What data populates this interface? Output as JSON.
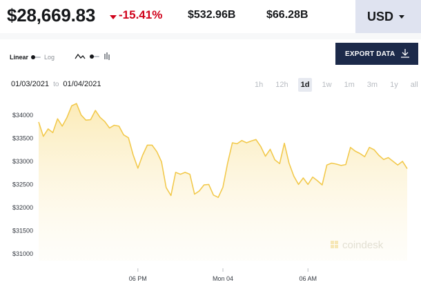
{
  "header": {
    "price": "$28,669.83",
    "change_pct": "-15.41%",
    "market_cap": "$532.96B",
    "volume": "$66.28B",
    "currency": "USD"
  },
  "controls": {
    "scale_linear": "Linear",
    "scale_log": "Log",
    "scale_selected": "linear",
    "export_label": "EXPORT DATA",
    "date_from": "01/03/2021",
    "date_to_word": "to",
    "date_to": "01/04/2021",
    "timeframes": [
      "1h",
      "12h",
      "1d",
      "1w",
      "1m",
      "3m",
      "1y",
      "all"
    ],
    "active_timeframe": "1d"
  },
  "watermark": "coindesk",
  "colors": {
    "line": "#f2c94c",
    "fill_top": "#fbeab4",
    "negative": "#d0021b",
    "export_bg": "#1c2a4a",
    "currency_bg": "#dfe3f0"
  },
  "chart_data": {
    "type": "area",
    "title": "",
    "xlabel": "",
    "ylabel": "",
    "x_tick_labels": [
      "06 PM",
      "Mon 04",
      "06 AM"
    ],
    "y_tick_labels": [
      "$34000",
      "$33500",
      "$33000",
      "$32500",
      "$32000",
      "$31500",
      "$31000"
    ],
    "yticks": [
      34000,
      33500,
      33000,
      32500,
      32000,
      31500,
      31000
    ],
    "ylim": [
      30850,
      34400
    ],
    "x_start": "2021-01-03 11:00",
    "x_end": "2021-01-04 13:00",
    "x_ticks": [
      "2021-01-03 18:00",
      "2021-01-04 00:00",
      "2021-01-04 06:00"
    ],
    "grid": false,
    "series": [
      {
        "x": [
          "2021-01-03 11:00",
          "2021-01-03 11:20",
          "2021-01-03 11:40",
          "2021-01-03 12:00",
          "2021-01-03 12:20",
          "2021-01-03 12:40",
          "2021-01-03 13:00",
          "2021-01-03 13:20",
          "2021-01-03 13:40",
          "2021-01-03 14:00",
          "2021-01-03 14:20",
          "2021-01-03 14:40",
          "2021-01-03 15:00",
          "2021-01-03 15:20",
          "2021-01-03 15:40",
          "2021-01-03 16:00",
          "2021-01-03 16:20",
          "2021-01-03 16:40",
          "2021-01-03 17:00",
          "2021-01-03 17:20",
          "2021-01-03 17:40",
          "2021-01-03 18:00",
          "2021-01-03 18:20",
          "2021-01-03 18:40",
          "2021-01-03 19:00",
          "2021-01-03 19:20",
          "2021-01-03 19:40",
          "2021-01-03 20:00",
          "2021-01-03 20:20",
          "2021-01-03 20:40",
          "2021-01-03 21:00",
          "2021-01-03 21:20",
          "2021-01-03 21:40",
          "2021-01-03 22:00",
          "2021-01-03 22:20",
          "2021-01-03 22:40",
          "2021-01-03 23:00",
          "2021-01-03 23:20",
          "2021-01-03 23:40",
          "2021-01-04 00:00",
          "2021-01-04 00:20",
          "2021-01-04 00:40",
          "2021-01-04 01:00",
          "2021-01-04 01:20",
          "2021-01-04 01:40",
          "2021-01-04 02:00",
          "2021-01-04 02:20",
          "2021-01-04 02:40",
          "2021-01-04 03:00",
          "2021-01-04 03:20",
          "2021-01-04 03:40",
          "2021-01-04 04:00",
          "2021-01-04 04:20",
          "2021-01-04 04:40",
          "2021-01-04 05:00",
          "2021-01-04 05:20",
          "2021-01-04 05:40",
          "2021-01-04 06:00",
          "2021-01-04 06:20",
          "2021-01-04 06:40",
          "2021-01-04 07:00",
          "2021-01-04 07:20",
          "2021-01-04 07:40",
          "2021-01-04 08:00",
          "2021-01-04 08:20",
          "2021-01-04 08:40",
          "2021-01-04 09:00",
          "2021-01-04 09:20",
          "2021-01-04 09:40",
          "2021-01-04 10:00",
          "2021-01-04 10:20",
          "2021-01-04 10:40",
          "2021-01-04 11:00",
          "2021-01-04 11:20",
          "2021-01-04 11:40",
          "2021-01-04 12:00",
          "2021-01-04 12:20",
          "2021-01-04 12:40",
          "2021-01-04 13:00"
        ],
        "values": [
          33850,
          33540,
          33700,
          33620,
          33920,
          33760,
          33950,
          34200,
          34250,
          34000,
          33890,
          33900,
          34100,
          33950,
          33860,
          33720,
          33780,
          33760,
          33570,
          33510,
          33140,
          32850,
          33130,
          33350,
          33350,
          33210,
          32990,
          32430,
          32260,
          32760,
          32720,
          32760,
          32720,
          32290,
          32360,
          32490,
          32500,
          32270,
          32220,
          32440,
          32960,
          33400,
          33380,
          33450,
          33400,
          33440,
          33470,
          33320,
          33110,
          33260,
          33030,
          32950,
          33390,
          32960,
          32680,
          32500,
          32640,
          32500,
          32660,
          32580,
          32490,
          32920,
          32960,
          32940,
          32910,
          32930,
          33300,
          33220,
          33170,
          33100,
          33300,
          33250,
          33130,
          33040,
          33080,
          33000,
          32920,
          33000,
          32840
        ]
      }
    ]
  }
}
